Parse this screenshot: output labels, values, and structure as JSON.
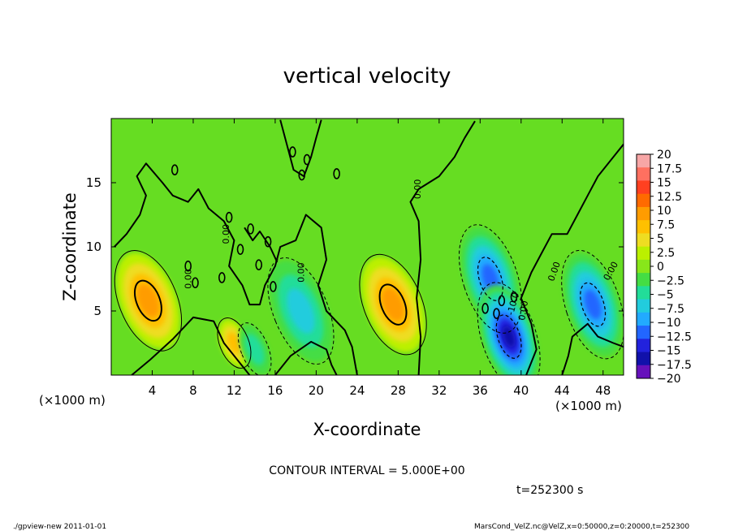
{
  "chart_data": {
    "type": "heatmap",
    "title": "vertical velocity",
    "xlabel": "X-coordinate",
    "ylabel": "Z-coordinate",
    "x_unit": "(×1000 m)",
    "y_unit": "(×1000 m)",
    "xlim": [
      0,
      50
    ],
    "ylim": [
      0,
      20
    ],
    "x_ticks": [
      "4",
      "8",
      "12",
      "16",
      "20",
      "24",
      "28",
      "32",
      "36",
      "40",
      "44",
      "48"
    ],
    "y_ticks": [
      "5",
      "10",
      "15"
    ],
    "colorbar_labels": [
      "20",
      "17.5",
      "15",
      "12.5",
      "10",
      "7.5",
      "5",
      "2.5",
      "0",
      "−2.5",
      "−5",
      "−7.5",
      "−10",
      "−12.5",
      "−15",
      "−17.5",
      "−20"
    ],
    "colorbar_colors": [
      "#f7a6a6",
      "#ff7060",
      "#ff4020",
      "#ff6a00",
      "#ff9c00",
      "#ffc000",
      "#eedd22",
      "#bbf000",
      "#88e61a",
      "#44dd44",
      "#22dd99",
      "#22ccdd",
      "#22aaff",
      "#2266ff",
      "#2222dd",
      "#1111aa",
      "#6611bb"
    ],
    "contour_interval": "CONTOUR INTERVAL = 5.000E+00",
    "contour_labels": [
      "0.00",
      "0.00",
      "0.00",
      "0.00",
      "0.00",
      "0.00",
      "0.00",
      "-10.0"
    ],
    "features": [
      {
        "x": 3.6,
        "z": 5.8,
        "value": 10,
        "kind": "updraft"
      },
      {
        "x": 12.0,
        "z": 2.5,
        "value": 7.5,
        "kind": "updraft"
      },
      {
        "x": 27.5,
        "z": 5.5,
        "value": 10,
        "kind": "updraft"
      },
      {
        "x": 37.0,
        "z": 7.5,
        "value": -12.5,
        "kind": "downdraft"
      },
      {
        "x": 38.8,
        "z": 3.0,
        "value": -17.5,
        "kind": "downdraft"
      },
      {
        "x": 47.0,
        "z": 5.5,
        "value": -12.5,
        "kind": "downdraft"
      },
      {
        "x": 18.5,
        "z": 5.0,
        "value": -7.5,
        "kind": "downdraft"
      },
      {
        "x": 14.0,
        "z": 2.0,
        "value": -5,
        "kind": "downdraft"
      }
    ],
    "grid": false,
    "legend": "colorbar-right"
  },
  "footer": {
    "time": "t=252300 s",
    "program": "./gpview-new  2011-01-01",
    "source": "MarsCond_VelZ.nc@VelZ,x=0:50000,z=0:20000,t=252300"
  }
}
